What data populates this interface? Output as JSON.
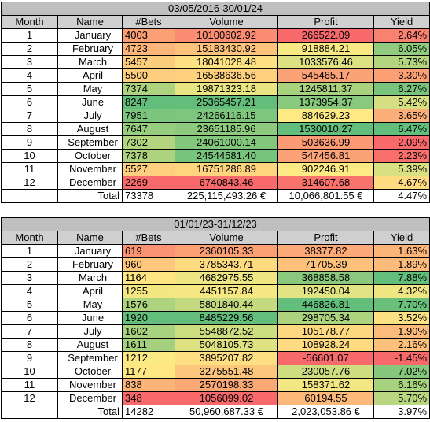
{
  "tables": [
    {
      "title": "03/05/2016-30/01/24",
      "header": [
        "Month",
        "Name",
        "#Bets",
        "Volume",
        "Profit",
        "Yield"
      ],
      "rows": [
        [
          "1",
          "January",
          "4003",
          "10100602.92",
          "266522.09",
          "2.64%"
        ],
        [
          "2",
          "February",
          "4723",
          "15183430.92",
          "918884.21",
          "6.05%"
        ],
        [
          "3",
          "March",
          "5457",
          "18041028.48",
          "1033576.46",
          "5.73%"
        ],
        [
          "4",
          "April",
          "5500",
          "16538636.56",
          "545465.17",
          "3.30%"
        ],
        [
          "5",
          "May",
          "7374",
          "19871323.18",
          "1245811.37",
          "6.27%"
        ],
        [
          "6",
          "June",
          "8247",
          "25365457.21",
          "1373954.37",
          "5.42%"
        ],
        [
          "7",
          "July",
          "7951",
          "24266116.15",
          "884629.23",
          "3.65%"
        ],
        [
          "8",
          "August",
          "7647",
          "23651185.96",
          "1530010.27",
          "6.47%"
        ],
        [
          "9",
          "September",
          "7302",
          "24061000.14",
          "503636.99",
          "2.09%"
        ],
        [
          "10",
          "October",
          "7378",
          "24544581.40",
          "547456.81",
          "2.23%"
        ],
        [
          "11",
          "November",
          "5527",
          "16751286.89",
          "902246.91",
          "5.39%"
        ],
        [
          "12",
          "December",
          "2269",
          "6740843.46",
          "314607.68",
          "4.67%"
        ]
      ],
      "total": [
        "Total",
        "73378",
        "225,115,493.26 €",
        "10,066,801.55 €",
        "4.47%"
      ]
    },
    {
      "title": "01/01/23-31/12/23",
      "header": [
        "Month",
        "Name",
        "#Bets",
        "Volume",
        "Profit",
        "Yield"
      ],
      "rows": [
        [
          "1",
          "January",
          "619",
          "2360105.33",
          "38377.82",
          "1.63%"
        ],
        [
          "2",
          "February",
          "960",
          "3785343.71",
          "71705.39",
          "1.89%"
        ],
        [
          "3",
          "March",
          "1164",
          "4682975.55",
          "368858.58",
          "7.88%"
        ],
        [
          "4",
          "April",
          "1255",
          "4451157.84",
          "192450.04",
          "4.32%"
        ],
        [
          "5",
          "May",
          "1576",
          "5801840.44",
          "446826.81",
          "7.70%"
        ],
        [
          "6",
          "June",
          "1920",
          "8485229.56",
          "298705.34",
          "3.52%"
        ],
        [
          "7",
          "July",
          "1602",
          "5548872.52",
          "105178.77",
          "1.90%"
        ],
        [
          "8",
          "August",
          "1611",
          "5048105.73",
          "108928.24",
          "2.16%"
        ],
        [
          "9",
          "September",
          "1212",
          "3895207.82",
          "-56601.07",
          "-1.45%"
        ],
        [
          "10",
          "October",
          "1177",
          "3275551.48",
          "230057.76",
          "7.02%"
        ],
        [
          "11",
          "November",
          "838",
          "2570198.33",
          "158371.62",
          "6.16%"
        ],
        [
          "12",
          "December",
          "348",
          "1056099.02",
          "60194.55",
          "5.70%"
        ]
      ],
      "total": [
        "Total",
        "14282",
        "50,960,687.33 €",
        "2,023,053.86 €",
        "3.97%"
      ]
    }
  ]
}
